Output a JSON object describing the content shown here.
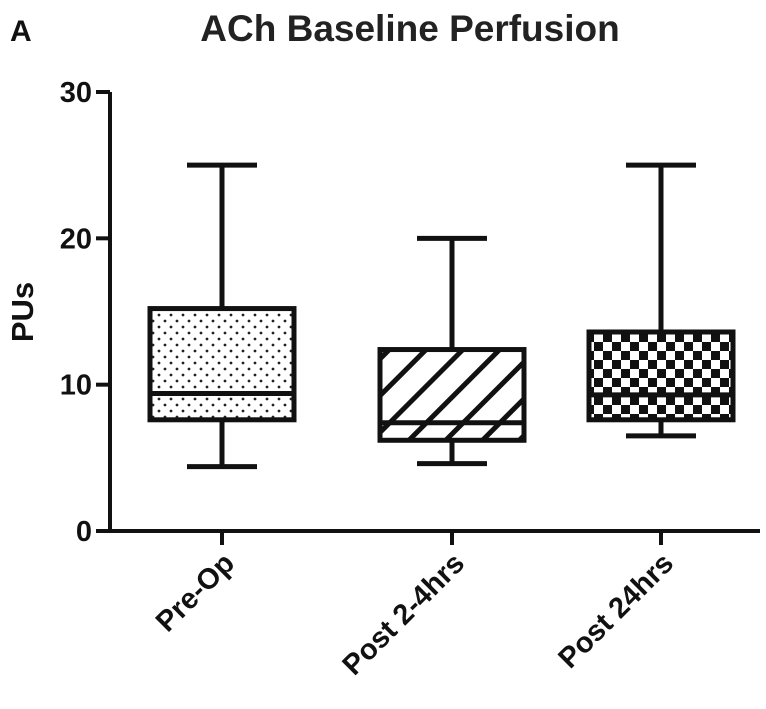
{
  "panel_label": "A",
  "chart_data": {
    "type": "box",
    "title": "ACh Baseline Perfusion",
    "xlabel": "",
    "ylabel": "PUs",
    "ylim": [
      0,
      30
    ],
    "yticks": [
      0,
      10,
      20,
      30
    ],
    "grid": false,
    "legend": "none",
    "categories": [
      "Pre-Op",
      "Post 2-4hrs",
      "Post 24hrs"
    ],
    "boxes": [
      {
        "category": "Pre-Op",
        "min": 4.4,
        "q1": 7.6,
        "median": 9.4,
        "q3": 15.2,
        "max": 25.0,
        "pattern": "dots"
      },
      {
        "category": "Post 2-4hrs",
        "min": 4.6,
        "q1": 6.2,
        "median": 7.4,
        "q3": 12.4,
        "max": 20.0,
        "pattern": "diagonal-hatch"
      },
      {
        "category": "Post 24hrs",
        "min": 6.5,
        "q1": 7.6,
        "median": 9.3,
        "q3": 13.6,
        "max": 25.0,
        "pattern": "checkerboard"
      }
    ],
    "colors": {
      "stroke": "#111111",
      "fill": "#ffffff"
    }
  }
}
